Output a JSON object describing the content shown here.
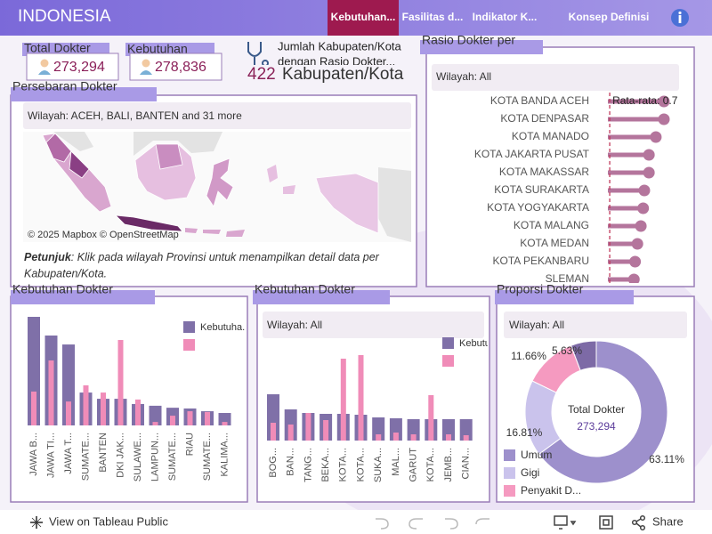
{
  "header": {
    "title": "INDONESIA",
    "tabs": [
      "Kebutuhan...",
      "Fasilitas d...",
      "Indikator K...",
      "Konsep Definisi"
    ]
  },
  "kpis": [
    {
      "title": "Total Dokter",
      "value": "273,294"
    },
    {
      "title": "Kebutuhan",
      "value": "278,836"
    },
    {
      "title": "Jumlah Kabupaten/Kota",
      "subtitle": "dengan Rasio Dokter...",
      "value": "422",
      "unit": "Kabupaten/Kota"
    }
  ],
  "map": {
    "title": "Persebaran Dokter",
    "filter": "Wilayah: ACEH, BALI, BANTEN and 31 more",
    "attribution": "© 2025 Mapbox © OpenStreetMap",
    "hint_label": "Petunjuk",
    "hint": ": Klik pada wilayah Provinsi untuk menampilkan detail data per",
    "hint_2": "Kabupaten/Kota."
  },
  "footer": {
    "link": "View on Tableau Public",
    "share": "Share"
  },
  "chart_data": [
    {
      "type": "lollipop",
      "title": "Rasio Dokter per",
      "filter": "Wilayah: All",
      "color": "#b4759c",
      "categories": [
        "KOTA BANDA ACEH",
        "KOTA DENPASAR",
        "KOTA MANADO",
        "KOTA JAKARTA PUSAT",
        "KOTA MAKASSAR",
        "KOTA SURAKARTA",
        "KOTA YOGYAKARTA",
        "KOTA MALANG",
        "KOTA MEDAN",
        "KOTA PEKANBARU",
        "SLEMAN"
      ],
      "values": [
        5.4,
        5.4,
        4.7,
        4.1,
        4.1,
        3.7,
        3.6,
        3.4,
        3.1,
        2.9,
        2.8
      ],
      "annotation": {
        "label": "Rata-rata: 0.7",
        "value": 0.7
      }
    },
    {
      "type": "bar",
      "title": "Kebutuhan Dokter",
      "categories": [
        "JAWA B...",
        "JAWA TI...",
        "JAWA T...",
        "SUMATE...",
        "BANTEN",
        "DKI JAK...",
        "SULAWE...",
        "LAMPUN...",
        "SUMATE...",
        "RIAU",
        "SUMATE...",
        "KALIMA..."
      ],
      "series": [
        {
          "name": "Kebutuha...",
          "color": "#7f70a8",
          "values": [
            43600,
            36100,
            32500,
            13200,
            10700,
            10700,
            8600,
            7900,
            7100,
            6800,
            5700,
            5000
          ]
        },
        {
          "name": null,
          "color": "#f08cb8",
          "values": [
            13600,
            26100,
            9600,
            16100,
            13200,
            34300,
            10400,
            1400,
            3900,
            5700,
            5400,
            1400
          ]
        }
      ]
    },
    {
      "type": "bar",
      "title": "Kebutuhan Dokter",
      "filter": "Wilayah: All",
      "categories": [
        "BOG...",
        "BAN...",
        "TANG...",
        "BEKA...",
        "KOTA...",
        "KOTA...",
        "SUKA...",
        "MAL...",
        "GARUT",
        "KOTA...",
        "JEMB...",
        "CIAN..."
      ],
      "series": [
        {
          "name": "Kebutuh...",
          "color": "#7f70a8",
          "values": [
            5200,
            3500,
            3100,
            3000,
            3000,
            2900,
            2600,
            2500,
            2400,
            2400,
            2400,
            2400
          ]
        },
        {
          "name": null,
          "color": "#f08cb8",
          "values": [
            2000,
            1800,
            3100,
            2300,
            9200,
            9600,
            700,
            900,
            700,
            5100,
            700,
            600
          ]
        }
      ]
    },
    {
      "type": "donut",
      "title": "Proporsi Dokter",
      "filter": "Wilayah: All",
      "center_title": "Total Dokter",
      "center_value": "273,294",
      "categories": [
        "Umum",
        "Gigi",
        "Penyakit D...",
        null
      ],
      "values": [
        63.11,
        16.81,
        11.66,
        5.63
      ],
      "value_labels": [
        "63.11%",
        "16.81%",
        "11.66%",
        "5.63%"
      ],
      "colors": [
        "#9d90cc",
        "#cac3ec",
        "#f59ac0",
        "#7d6aa6"
      ]
    }
  ]
}
